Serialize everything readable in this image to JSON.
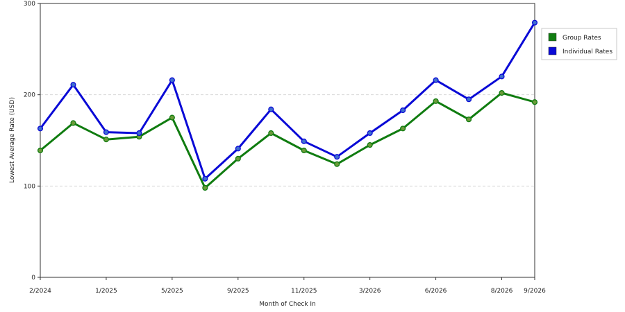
{
  "chart_data": {
    "type": "line",
    "xlabel": "Month of Check In",
    "ylabel": "Lowest Average Rate (USD)",
    "ylim": [
      0,
      300
    ],
    "yticks": [
      "0",
      "100",
      "200",
      "300"
    ],
    "grid": "horizontal dashed at 100 and 200",
    "legend_position": "right",
    "x_tick_labels": [
      {
        "index": 0,
        "label": "2/2024"
      },
      {
        "index": 2,
        "label": "1/2025"
      },
      {
        "index": 4,
        "label": "5/2025"
      },
      {
        "index": 6,
        "label": "9/2025"
      },
      {
        "index": 8,
        "label": "11/2025"
      },
      {
        "index": 10,
        "label": "3/2026"
      },
      {
        "index": 12,
        "label": "6/2026"
      },
      {
        "index": 14,
        "label": "8/2026"
      },
      {
        "index": 15,
        "label": "9/2026"
      }
    ],
    "series": [
      {
        "name": "Group Rates",
        "color": "#107c10",
        "marker_color": "#6b9b3a",
        "values": [
          139,
          169,
          151,
          154,
          175,
          98,
          130,
          158,
          139,
          124,
          145,
          163,
          193,
          173,
          202,
          192
        ]
      },
      {
        "name": "Individual Rates",
        "color": "#0a0ad6",
        "marker_color": "#3f6fcf",
        "values": [
          163,
          211,
          159,
          158,
          216,
          108,
          141,
          184,
          149,
          132,
          158,
          183,
          216,
          195,
          220,
          279
        ]
      }
    ]
  }
}
